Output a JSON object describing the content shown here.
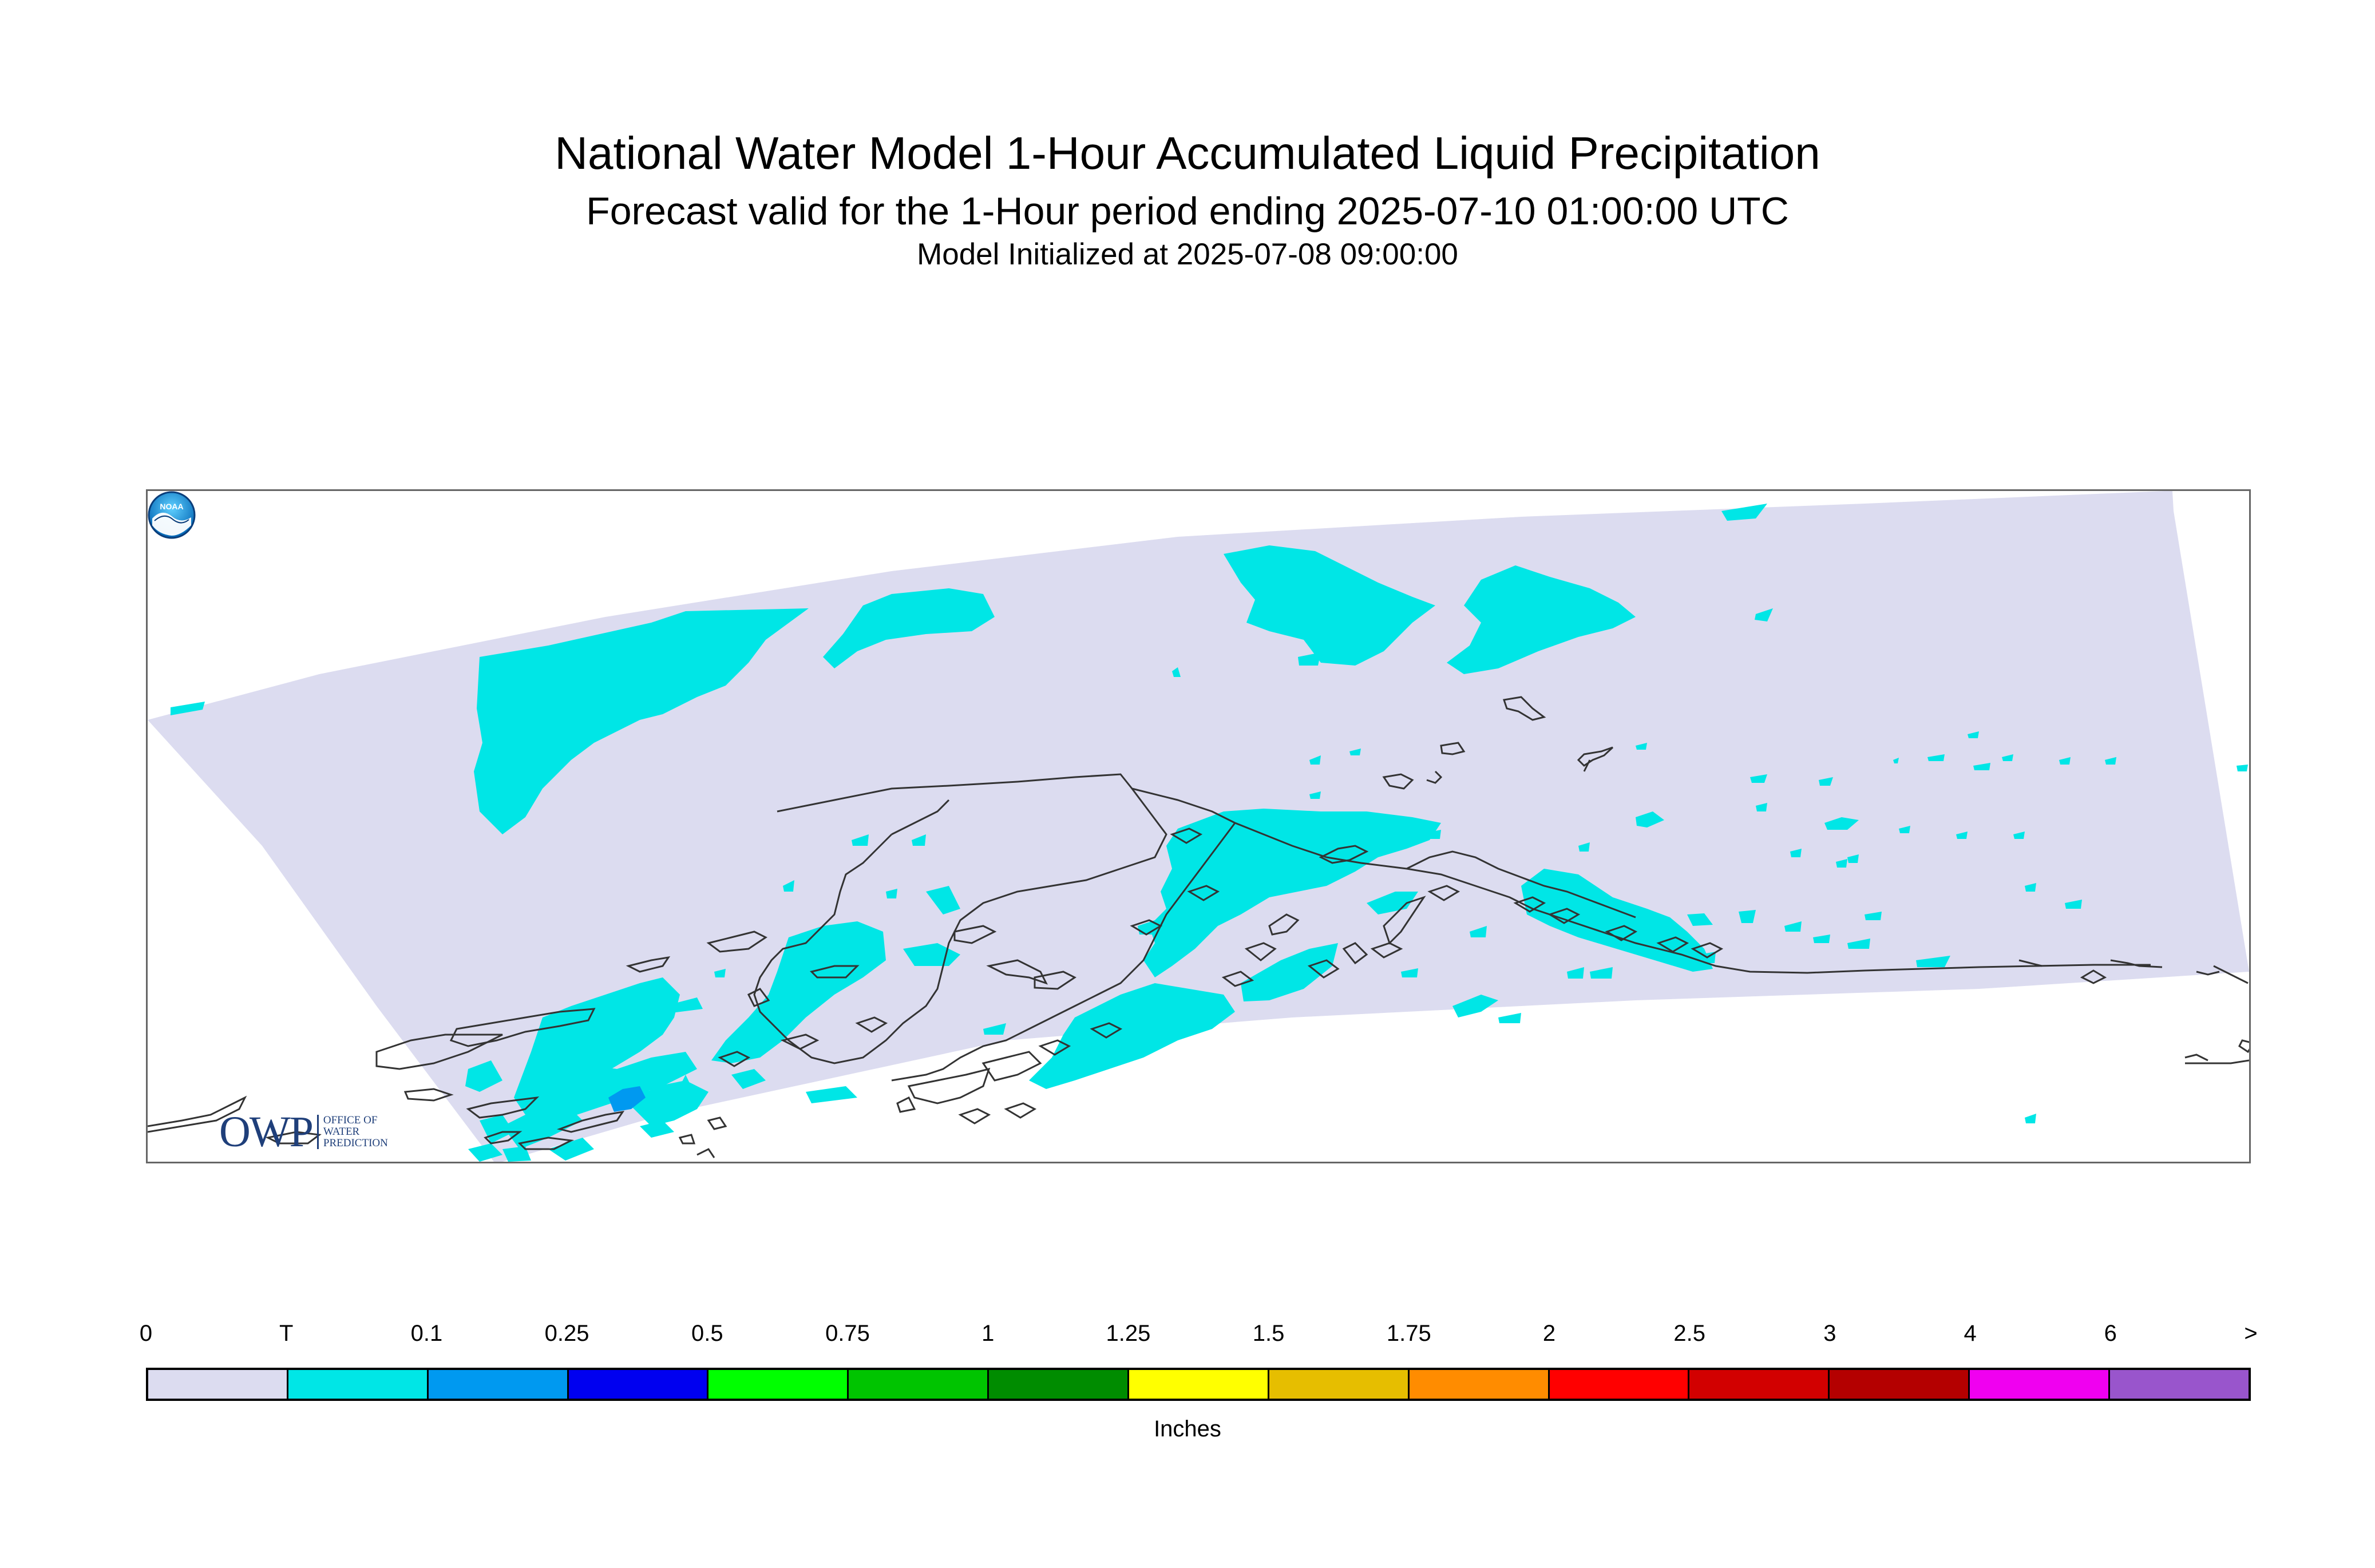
{
  "title": "National Water Model 1-Hour Accumulated Liquid Precipitation",
  "subtitle": "Forecast valid for the 1-Hour period ending 2025-07-10 01:00:00 UTC",
  "init_line": "Model Initialized at 2025-07-08 09:00:00",
  "map": {
    "region": "Alaska",
    "domain_color": "#dcdcf0",
    "precip_colors": {
      "trace": "#00e6e6",
      "light": "#0099f0"
    }
  },
  "logos": {
    "owp": {
      "mark": "OWP",
      "lines": [
        "OFFICE OF",
        "WATER",
        "PREDICTION"
      ]
    },
    "noaa": {
      "text": "NOAA"
    }
  },
  "legend": {
    "units": "Inches",
    "ticks": [
      "0",
      "T",
      "0.1",
      "0.25",
      "0.5",
      "0.75",
      "1",
      "1.25",
      "1.5",
      "1.75",
      "2",
      "2.5",
      "3",
      "4",
      "6",
      ">"
    ],
    "colors": [
      "#dcdcf0",
      "#00e6e6",
      "#0099f0",
      "#0000f0",
      "#00ff00",
      "#00c400",
      "#008c00",
      "#ffff00",
      "#e6be00",
      "#ff8c00",
      "#ff0000",
      "#d20000",
      "#b40000",
      "#f000f0",
      "#9955cc"
    ]
  }
}
